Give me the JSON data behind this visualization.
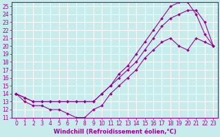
{
  "xlabel": "Windchill (Refroidissement éolien,°C)",
  "bg_color": "#c8ecec",
  "line_color": "#990099",
  "grid_color": "#ffffff",
  "xlim": [
    -0.5,
    23.5
  ],
  "ylim": [
    11,
    25.5
  ],
  "xticks": [
    0,
    1,
    2,
    3,
    4,
    5,
    6,
    7,
    8,
    9,
    10,
    11,
    12,
    13,
    14,
    15,
    16,
    17,
    18,
    19,
    20,
    21,
    22,
    23
  ],
  "yticks": [
    11,
    12,
    13,
    14,
    15,
    16,
    17,
    18,
    19,
    20,
    21,
    22,
    23,
    24,
    25
  ],
  "line1_x": [
    0,
    1,
    2,
    3,
    4,
    5,
    6,
    7,
    8,
    9,
    10,
    11,
    12,
    13,
    14,
    15,
    16,
    17,
    18,
    19,
    20,
    21,
    22,
    23
  ],
  "line1_y": [
    14.0,
    13.0,
    12.5,
    12.5,
    12.0,
    12.0,
    11.5,
    11.0,
    11.0,
    12.0,
    12.5,
    14.0,
    15.0,
    16.0,
    17.0,
    18.5,
    19.5,
    20.5,
    21.0,
    20.0,
    19.5,
    21.0,
    20.5,
    20.0
  ],
  "line2_x": [
    0,
    1,
    2,
    3,
    4,
    5,
    6,
    7,
    8,
    9,
    10,
    11,
    12,
    13,
    14,
    15,
    16,
    17,
    18,
    19,
    20,
    21,
    22,
    23
  ],
  "line2_y": [
    14.0,
    13.5,
    13.0,
    13.0,
    13.0,
    13.0,
    13.0,
    13.0,
    13.0,
    13.0,
    14.0,
    15.0,
    16.0,
    17.0,
    18.0,
    19.5,
    21.0,
    22.5,
    23.5,
    24.0,
    24.5,
    24.5,
    23.0,
    20.0
  ],
  "line3_x": [
    0,
    1,
    2,
    3,
    4,
    5,
    6,
    7,
    8,
    9,
    10,
    11,
    12,
    13,
    14,
    15,
    16,
    17,
    18,
    19,
    20,
    21,
    22,
    23
  ],
  "line3_y": [
    14.0,
    13.5,
    13.0,
    13.0,
    13.0,
    13.0,
    13.0,
    13.0,
    13.0,
    13.0,
    14.0,
    15.0,
    16.5,
    17.5,
    19.0,
    20.5,
    22.0,
    23.5,
    25.0,
    25.5,
    25.5,
    24.0,
    21.5,
    20.0
  ],
  "tick_fontsize": 5.5,
  "xlabel_fontsize": 6.0
}
